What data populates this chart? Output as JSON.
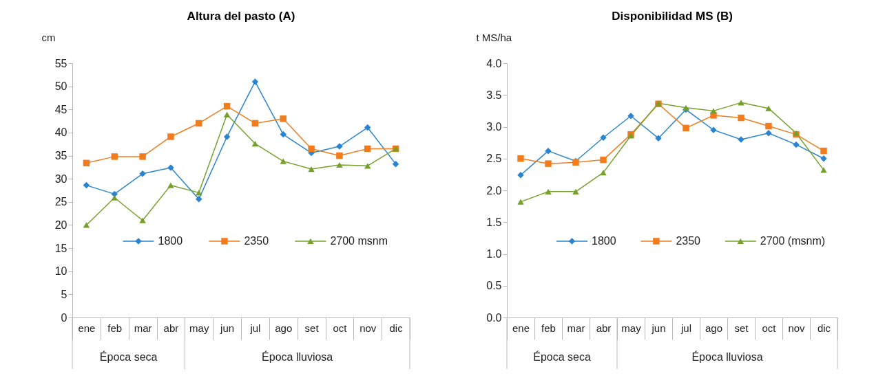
{
  "chart_data": [
    {
      "type": "line",
      "title": "Altura del pasto (A)",
      "ylabel": "cm",
      "categories": [
        "ene",
        "feb",
        "mar",
        "abr",
        "may",
        "jun",
        "jul",
        "ago",
        "set",
        "oct",
        "nov",
        "dic"
      ],
      "series": [
        {
          "name": "1800",
          "color": "#2a84cf",
          "marker": "diamond",
          "values": [
            28.6,
            26.7,
            31.1,
            32.4,
            25.6,
            39.1,
            51.0,
            39.6,
            35.6,
            37.0,
            41.1,
            33.2
          ]
        },
        {
          "name": "2350",
          "color": "#f07c1e",
          "marker": "square",
          "values": [
            33.4,
            34.8,
            34.8,
            39.1,
            42.0,
            45.7,
            42.0,
            43.0,
            36.5,
            35.0,
            36.5,
            36.5
          ]
        },
        {
          "name": "2700 msnm",
          "color": "#75a02a",
          "marker": "triangle",
          "values": [
            20.0,
            25.9,
            21.0,
            28.6,
            27.0,
            43.9,
            37.6,
            33.8,
            32.1,
            33.0,
            32.8,
            36.5
          ]
        }
      ],
      "ylim": [
        0,
        55
      ],
      "yticks": [
        0,
        5,
        10,
        15,
        20,
        25,
        30,
        35,
        40,
        45,
        50,
        55
      ],
      "legend": "bottom",
      "annotations": [
        "Época seca",
        "Época lluviosa"
      ]
    },
    {
      "type": "line",
      "title": "Disponibilidad MS (B)",
      "ylabel": "t MS/ha",
      "categories": [
        "ene",
        "feb",
        "mar",
        "abr",
        "may",
        "jun",
        "jul",
        "ago",
        "set",
        "oct",
        "nov",
        "dic"
      ],
      "series": [
        {
          "name": "1800",
          "color": "#2a84cf",
          "marker": "diamond",
          "values": [
            2.24,
            2.62,
            2.46,
            2.83,
            3.17,
            2.82,
            3.27,
            2.95,
            2.8,
            2.9,
            2.72,
            2.5
          ]
        },
        {
          "name": "2350",
          "color": "#f07c1e",
          "marker": "square",
          "values": [
            2.5,
            2.42,
            2.44,
            2.48,
            2.88,
            3.36,
            2.98,
            3.18,
            3.14,
            3.01,
            2.88,
            2.62
          ]
        },
        {
          "name": "2700 (msnm)",
          "color": "#75a02a",
          "marker": "triangle",
          "values": [
            1.82,
            1.98,
            1.98,
            2.28,
            2.86,
            3.37,
            3.3,
            3.25,
            3.38,
            3.29,
            2.9,
            2.32
          ]
        }
      ],
      "ylim": [
        0,
        4
      ],
      "yticks": [
        {
          "value": 0,
          "label": "0.0"
        },
        {
          "value": 0.5,
          "label": "0.5"
        },
        {
          "value": 1,
          "label": "1.0"
        },
        {
          "value": 1.5,
          "label": "1.5"
        },
        {
          "value": 2,
          "label": "2.0"
        },
        {
          "value": 2.5,
          "label": "2.5"
        },
        {
          "value": 3,
          "label": "3.0"
        },
        {
          "value": 3.5,
          "label": "3.5"
        },
        {
          "value": 4,
          "label": "4.0"
        }
      ],
      "legend": "bottom",
      "annotations": [
        "Época seca",
        "Época lluviosa"
      ]
    }
  ]
}
